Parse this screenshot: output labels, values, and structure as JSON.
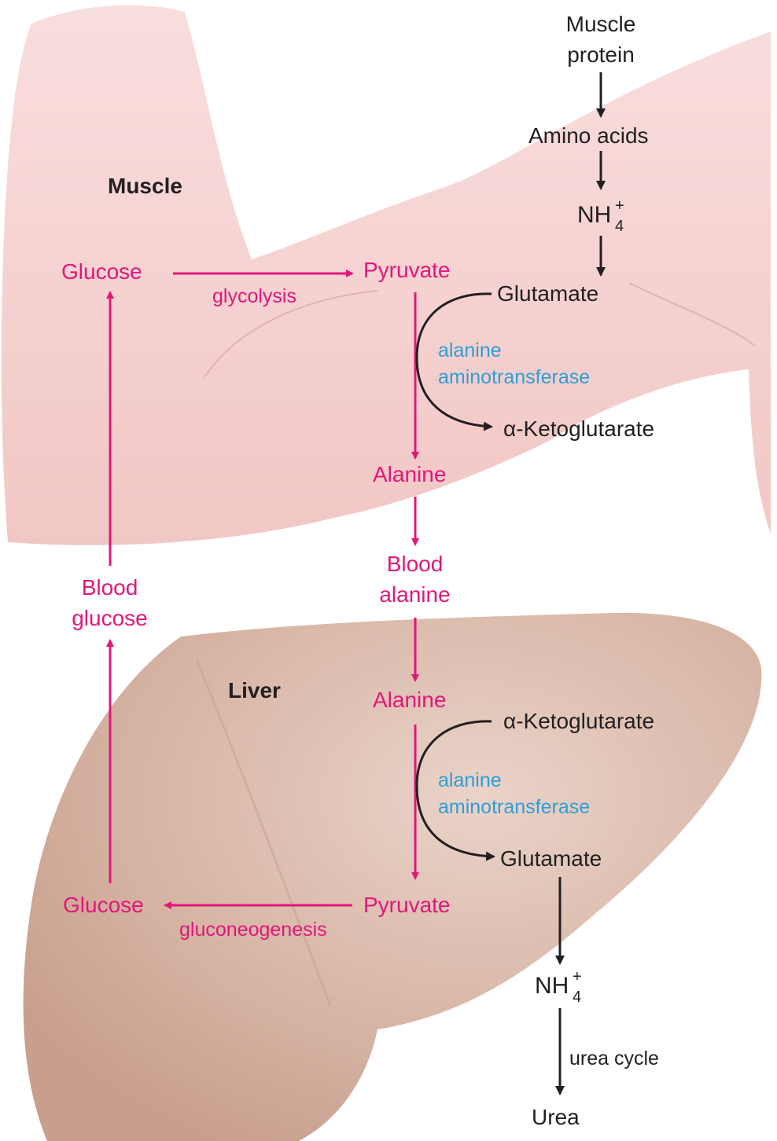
{
  "regions": {
    "muscle": "Muscle",
    "liver": "Liver"
  },
  "muscle": {
    "muscle_protein": "Muscle protein",
    "amino_acids": "Amino acids",
    "nh4": "NH",
    "nh4_sub": "4",
    "nh4_sup": "+",
    "glutamate": "Glutamate",
    "glucose": "Glucose",
    "pyruvate": "Pyruvate",
    "glycolysis": "glycolysis",
    "enzyme_line1": "alanine",
    "enzyme_line2": "aminotransferase",
    "alpha_ketoglutarate": "α-Ketoglutarate",
    "alanine": "Alanine"
  },
  "blood": {
    "blood_alanine_line1": "Blood",
    "blood_alanine_line2": "alanine",
    "blood_glucose_line1": "Blood",
    "blood_glucose_line2": "glucose"
  },
  "liver": {
    "alanine": "Alanine",
    "alpha_ketoglutarate": "α-Ketoglutarate",
    "enzyme_line1": "alanine",
    "enzyme_line2": "aminotransferase",
    "glutamate": "Glutamate",
    "pyruvate": "Pyruvate",
    "glucose": "Glucose",
    "gluconeogenesis": "gluconeogenesis",
    "nh4": "NH",
    "nh4_sub": "4",
    "nh4_sup": "+",
    "urea_cycle": "urea cycle",
    "urea": "Urea"
  },
  "colors": {
    "pathway": "#e2177a",
    "enzyme": "#2e9fd6",
    "text": "#231f20",
    "muscle_fill": "#f6d3d3",
    "liver_fill": "#d8b6a6"
  }
}
